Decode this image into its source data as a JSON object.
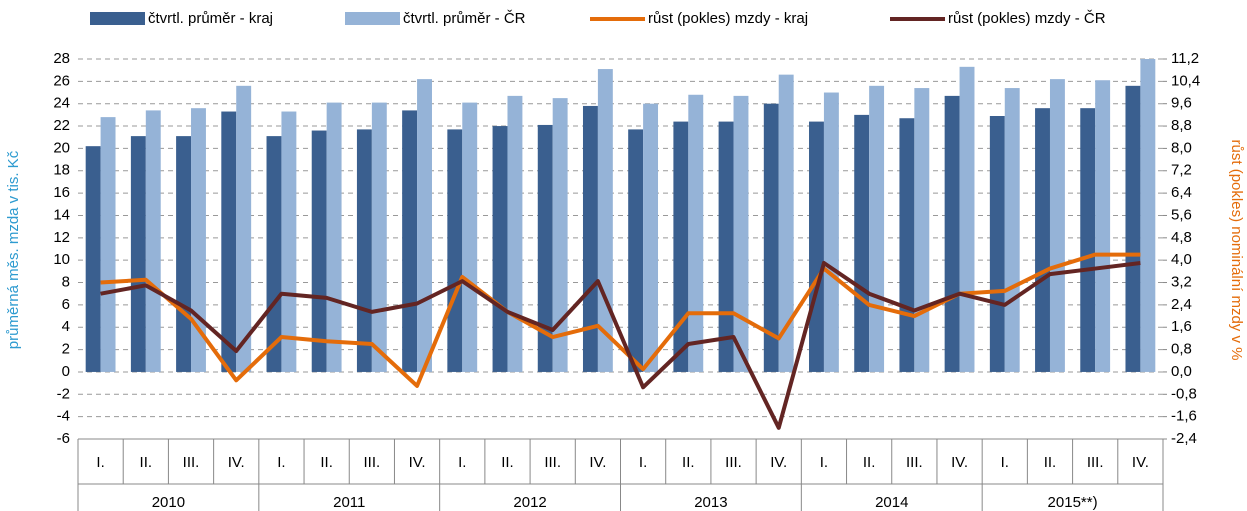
{
  "chart_data": {
    "type": "bar",
    "categories": [
      "I.",
      "II.",
      "III.",
      "IV.",
      "I.",
      "II.",
      "III.",
      "IV.",
      "I.",
      "II.",
      "III.",
      "IV.",
      "I.",
      "II.",
      "III.",
      "IV.",
      "I.",
      "II.",
      "III.",
      "IV.",
      "I.",
      "II.",
      "III.",
      "IV."
    ],
    "groups": [
      "2010",
      "2011",
      "2012",
      "2013",
      "2014",
      "2015**)"
    ],
    "ylabel": "průměrná měs. mzda v tis. Kč",
    "y2label": "růst (pokles) nominální mzdy v %",
    "ylim": [
      -6,
      28
    ],
    "yticks": [
      -6,
      -4,
      -2,
      0,
      2,
      4,
      6,
      8,
      10,
      12,
      14,
      16,
      18,
      20,
      22,
      24,
      26,
      28
    ],
    "y2lim": [
      -2.4,
      11.2
    ],
    "y2ticks": [
      {
        "value": -2.4,
        "label": "-2,4"
      },
      {
        "value": -1.6,
        "label": "-1,6"
      },
      {
        "value": -0.8,
        "label": "-0,8"
      },
      {
        "value": 0,
        "label": "0,0"
      },
      {
        "value": 0.8,
        "label": "0,8"
      },
      {
        "value": 1.6,
        "label": "1,6"
      },
      {
        "value": 2.4,
        "label": "2,4"
      },
      {
        "value": 3.2,
        "label": "3,2"
      },
      {
        "value": 4.0,
        "label": "4,0"
      },
      {
        "value": 4.8,
        "label": "4,8"
      },
      {
        "value": 5.6,
        "label": "5,6"
      },
      {
        "value": 6.4,
        "label": "6,4"
      },
      {
        "value": 7.2,
        "label": "7,2"
      },
      {
        "value": 8.0,
        "label": "8,0"
      },
      {
        "value": 8.8,
        "label": "8,8"
      },
      {
        "value": 9.6,
        "label": "9,6"
      },
      {
        "value": 10.4,
        "label": "10,4"
      },
      {
        "value": 11.2,
        "label": "11,2"
      }
    ],
    "grid": true,
    "series": [
      {
        "name": "čtvrtl. průměr - kraj",
        "type": "bar",
        "color": "#3a5f8f",
        "values": [
          20.2,
          21.1,
          21.1,
          23.3,
          21.1,
          21.6,
          21.7,
          23.4,
          21.7,
          22.0,
          22.1,
          23.8,
          21.7,
          22.4,
          22.4,
          24.0,
          22.4,
          23.0,
          22.7,
          24.7,
          22.9,
          23.6,
          23.6,
          25.6
        ]
      },
      {
        "name": "čtvrtl. průměr - ČR",
        "type": "bar",
        "color": "#95b3d7",
        "values": [
          22.8,
          23.4,
          23.6,
          25.6,
          23.3,
          24.1,
          24.1,
          26.2,
          24.1,
          24.7,
          24.5,
          27.1,
          24.0,
          24.8,
          24.7,
          26.6,
          25.0,
          25.6,
          25.4,
          27.3,
          25.4,
          26.2,
          26.1,
          28.0
        ]
      },
      {
        "name": "růst (pokles) mzdy - kraj",
        "type": "line",
        "axis": "y2",
        "color": "#e46c0a",
        "values": [
          3.2,
          3.3,
          1.9,
          -0.3,
          1.25,
          1.1,
          1.0,
          -0.5,
          3.4,
          2.15,
          1.25,
          1.65,
          0.1,
          2.1,
          2.1,
          1.2,
          3.7,
          2.4,
          2.0,
          2.8,
          2.9,
          3.7,
          4.2,
          4.2
        ]
      },
      {
        "name": "růst (pokles) mzdy - ČR",
        "type": "line",
        "axis": "y2",
        "color": "#632523",
        "values": [
          2.8,
          3.1,
          2.2,
          0.75,
          2.8,
          2.65,
          2.15,
          2.45,
          3.25,
          2.15,
          1.5,
          3.25,
          -0.55,
          1.0,
          1.25,
          -2.0,
          3.9,
          2.8,
          2.2,
          2.8,
          2.4,
          3.5,
          3.7,
          3.9
        ]
      }
    ]
  }
}
